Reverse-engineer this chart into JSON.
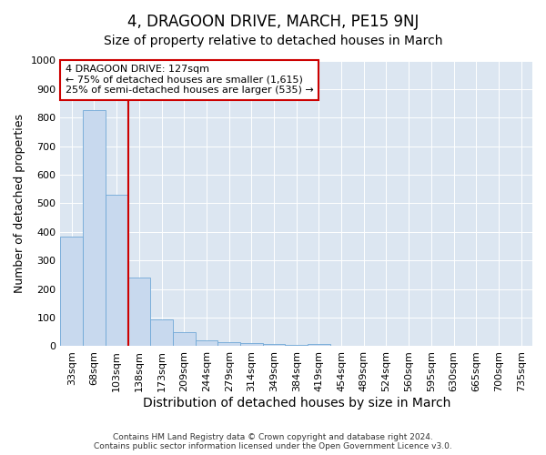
{
  "title": "4, DRAGOON DRIVE, MARCH, PE15 9NJ",
  "subtitle": "Size of property relative to detached houses in March",
  "xlabel": "Distribution of detached houses by size in March",
  "ylabel": "Number of detached properties",
  "categories": [
    "33sqm",
    "68sqm",
    "103sqm",
    "138sqm",
    "173sqm",
    "209sqm",
    "244sqm",
    "279sqm",
    "314sqm",
    "349sqm",
    "384sqm",
    "419sqm",
    "454sqm",
    "489sqm",
    "524sqm",
    "560sqm",
    "595sqm",
    "630sqm",
    "665sqm",
    "700sqm",
    "735sqm"
  ],
  "values": [
    383,
    825,
    530,
    240,
    93,
    50,
    20,
    13,
    10,
    8,
    5,
    8,
    0,
    0,
    0,
    0,
    0,
    0,
    0,
    0,
    0
  ],
  "bar_color": "#c8d9ee",
  "bar_edge_color": "#6fa8d6",
  "vline_x": 2.5,
  "vline_color": "#cc0000",
  "annotation_text": "4 DRAGOON DRIVE: 127sqm\n← 75% of detached houses are smaller (1,615)\n25% of semi-detached houses are larger (535) →",
  "annotation_box_color": "#ffffff",
  "annotation_box_edge": "#cc0000",
  "ylim": [
    0,
    1000
  ],
  "yticks": [
    0,
    100,
    200,
    300,
    400,
    500,
    600,
    700,
    800,
    900,
    1000
  ],
  "background_color": "#dce6f1",
  "footer": "Contains HM Land Registry data © Crown copyright and database right 2024.\nContains public sector information licensed under the Open Government Licence v3.0.",
  "title_fontsize": 12,
  "subtitle_fontsize": 10,
  "xlabel_fontsize": 10,
  "ylabel_fontsize": 9,
  "tick_fontsize": 8,
  "ann_fontsize": 8
}
